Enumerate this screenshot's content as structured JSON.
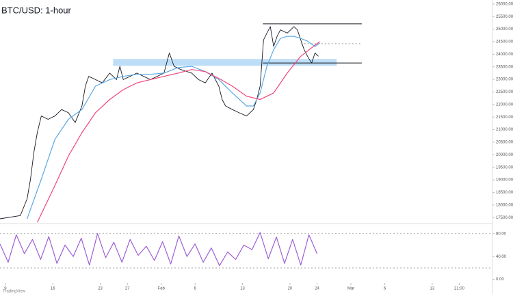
{
  "chart_data": [
    {
      "type": "line",
      "title": "BTC/USD: 1-hour",
      "watermark": "TradingView",
      "xlim": [
        8.2,
        80.9
      ],
      "ylim": [
        17315,
        26158
      ],
      "yticks": [
        {
          "value": 17500,
          "label": "17500.00"
        },
        {
          "value": 18000,
          "label": "18000.00"
        },
        {
          "value": 18500,
          "label": "18500.00"
        },
        {
          "value": 19000,
          "label": "19000.00"
        },
        {
          "value": 19500,
          "label": "19500.00"
        },
        {
          "value": 20000,
          "label": "20000.00"
        },
        {
          "value": 20500,
          "label": "20500.00"
        },
        {
          "value": 21000,
          "label": "21000.00"
        },
        {
          "value": 21500,
          "label": "21500.00"
        },
        {
          "value": 22000,
          "label": "22000.00"
        },
        {
          "value": 22500,
          "label": "22500.00"
        },
        {
          "value": 23000,
          "label": "23000.00"
        },
        {
          "value": 23500,
          "label": "23500.00"
        },
        {
          "value": 24000,
          "label": "24000.00"
        },
        {
          "value": 24500,
          "label": "24500.00"
        },
        {
          "value": 25000,
          "label": "25000.00"
        },
        {
          "value": 25500,
          "label": "25500.00"
        },
        {
          "value": 26000,
          "label": "26000.00"
        }
      ],
      "series": [
        {
          "color": "#131722",
          "x": [
            8.2,
            11.2,
            12.2,
            12.7,
            13.2,
            13.7,
            14.3,
            15.3,
            16.3,
            17.3,
            18.3,
            19.3,
            20.3,
            20.8,
            21.3,
            22.3,
            23.3,
            24.4,
            25.4,
            25.9,
            26.4,
            27.4,
            28.4,
            29.4,
            30.4,
            31.4,
            32.4,
            33.2,
            33.9,
            34.9,
            36.5,
            37.5,
            38.5,
            39.5,
            40.5,
            41.0,
            41.5,
            42.5,
            43.5,
            44.6,
            45.6,
            46.1,
            46.6,
            47.1,
            47.6,
            48.1,
            48.6,
            49.1,
            49.6,
            50.6,
            51.6,
            52.1,
            52.6,
            53.1,
            53.6,
            54.2,
            54.7,
            55.2
          ],
          "values": [
            17450,
            17580,
            18240,
            19030,
            20090,
            20880,
            21540,
            21410,
            21540,
            21800,
            21670,
            21280,
            21940,
            22730,
            23120,
            22990,
            22860,
            23250,
            22990,
            23520,
            22990,
            23120,
            23250,
            23120,
            22990,
            23120,
            23250,
            24050,
            23520,
            23390,
            23250,
            22990,
            22860,
            23250,
            22730,
            22200,
            21940,
            21800,
            21670,
            21540,
            21800,
            22200,
            22730,
            24570,
            24840,
            25100,
            24310,
            24710,
            24970,
            24840,
            25100,
            24970,
            24570,
            24180,
            23920,
            23650,
            24050,
            23920
          ]
        },
        {
          "color": "#5aa9e6",
          "x": [
            12.2,
            14.3,
            16.3,
            18.3,
            20.3,
            22.3,
            24.4,
            26.4,
            28.4,
            30.4,
            32.4,
            34.5,
            36.5,
            38.5,
            40.5,
            42.5,
            44.6,
            45.6,
            46.6,
            47.6,
            48.6,
            49.6,
            50.6,
            51.6,
            52.6,
            53.6,
            54.7,
            55.4
          ],
          "values": [
            17450,
            19030,
            20610,
            21410,
            21800,
            22730,
            22990,
            23120,
            23200,
            23200,
            23250,
            23470,
            23520,
            23310,
            22990,
            22460,
            21940,
            21940,
            22460,
            23520,
            24180,
            24630,
            24710,
            24710,
            24630,
            24520,
            24310,
            24440
          ]
        },
        {
          "color": "#f0457a",
          "x": [
            13.7,
            16.3,
            18.3,
            20.3,
            22.3,
            24.4,
            26.4,
            28.4,
            30.4,
            32.4,
            34.5,
            36.5,
            38.5,
            40.5,
            42.5,
            44.6,
            46.6,
            48.6,
            50.6,
            52.6,
            54.7,
            55.4
          ],
          "values": [
            17310,
            18770,
            19950,
            20880,
            21670,
            22200,
            22590,
            22860,
            22990,
            23120,
            23250,
            23390,
            23310,
            23040,
            22730,
            22330,
            22200,
            22460,
            23250,
            23920,
            24360,
            24500
          ]
        }
      ],
      "levels": [
        {
          "value": 25210,
          "x": [
            47.0,
            61.6
          ],
          "style": "solid"
        },
        {
          "value": 23650,
          "x": [
            47.0,
            61.6
          ],
          "style": "solid"
        },
        {
          "value": 24420,
          "x": [
            52.6,
            61.6
          ],
          "style": "dashed"
        }
      ],
      "bands": [
        {
          "from": 23540,
          "to": 23810,
          "x": [
            24.9,
            57.9
          ],
          "color": "#b3d7f5"
        }
      ]
    },
    {
      "type": "line",
      "xlim": [
        8.2,
        80.9
      ],
      "ylim": [
        -4,
        94
      ],
      "yticks": [
        {
          "value": 80,
          "label": "80.00"
        },
        {
          "value": 40,
          "label": "40.00"
        },
        {
          "value": 0,
          "label": "0.00"
        }
      ],
      "levels": [
        80,
        20
      ],
      "xticks": [
        {
          "value": 9,
          "label": "9"
        },
        {
          "value": 16,
          "label": "16"
        },
        {
          "value": 23,
          "label": "23"
        },
        {
          "value": 27,
          "label": "27"
        },
        {
          "value": 32,
          "label": "Feb"
        },
        {
          "value": 37,
          "label": "6"
        },
        {
          "value": 44,
          "label": "13"
        },
        {
          "value": 51,
          "label": "20"
        },
        {
          "value": 55,
          "label": "24"
        },
        {
          "value": 60,
          "label": "Mar"
        },
        {
          "value": 65,
          "label": "6"
        },
        {
          "value": 72,
          "label": "13"
        },
        {
          "value": 76,
          "label": "21:00"
        }
      ],
      "series": [
        {
          "color": "#9c5fd6",
          "x": [
            8.2,
            9.4,
            10.6,
            11.8,
            13.0,
            14.2,
            15.4,
            16.6,
            17.8,
            19.0,
            20.2,
            21.4,
            22.6,
            23.8,
            25.0,
            26.2,
            27.4,
            28.6,
            29.8,
            31.0,
            32.2,
            33.4,
            34.6,
            35.8,
            37.0,
            38.2,
            39.4,
            40.6,
            41.8,
            43.0,
            44.2,
            45.4,
            46.6,
            47.8,
            49.0,
            50.2,
            51.4,
            52.6,
            53.8,
            55.0
          ],
          "values": [
            62,
            30,
            78,
            45,
            70,
            35,
            75,
            28,
            60,
            40,
            72,
            25,
            80,
            38,
            65,
            30,
            70,
            42,
            58,
            33,
            66,
            27,
            76,
            40,
            62,
            30,
            55,
            24,
            48,
            35,
            60,
            52,
            82,
            36,
            74,
            28,
            70,
            25,
            78,
            45
          ]
        }
      ]
    }
  ]
}
